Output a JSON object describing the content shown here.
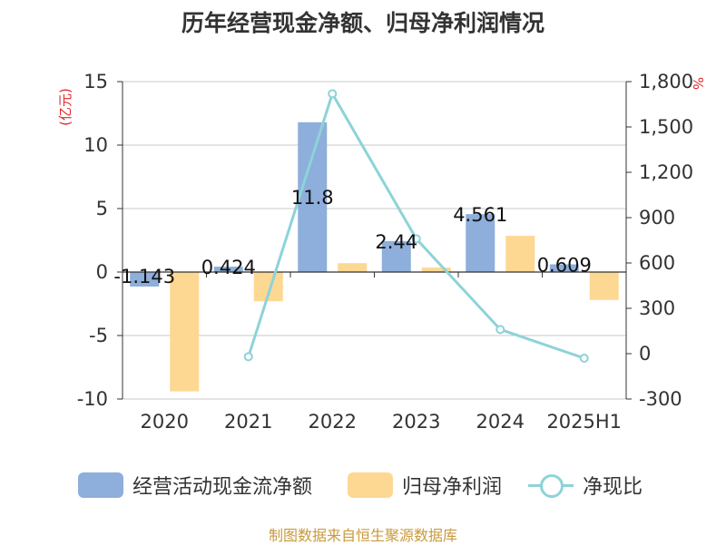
{
  "chart_data": {
    "type": "bar",
    "title": "历年经营现金净额、归母净利润情况",
    "categories": [
      "2020",
      "2021",
      "2022",
      "2023",
      "2024",
      "2025H1"
    ],
    "left_axis": {
      "unit": "(亿元)",
      "ylim": [
        -10,
        15
      ],
      "ticks": [
        "15",
        "10",
        "5",
        "0",
        "-5",
        "-10"
      ]
    },
    "right_axis": {
      "unit": "%",
      "ylim": [
        -300,
        1800
      ],
      "ticks": [
        "1,800",
        "1,500",
        "1,200",
        "900",
        "600",
        "300",
        "0",
        "-300"
      ]
    },
    "series": [
      {
        "name": "经营活动现金流净额",
        "type": "bar",
        "axis": "left",
        "color": "#8eaedb",
        "values": [
          -1.143,
          0.424,
          11.8,
          2.44,
          4.561,
          0.609
        ],
        "labels": [
          "-1.143",
          "0.424",
          "11.8",
          "2.44",
          "4.561",
          "0.609"
        ]
      },
      {
        "name": "归母净利润",
        "type": "bar",
        "axis": "left",
        "color": "#fdd893",
        "values": [
          -9.4,
          -2.3,
          0.7,
          0.35,
          2.85,
          -2.2
        ]
      },
      {
        "name": "净现比",
        "type": "line",
        "axis": "right",
        "color": "#8dd3d8",
        "values": [
          null,
          -20,
          1720,
          760,
          160,
          -30
        ]
      }
    ],
    "grid": true,
    "legend_position": "bottom"
  },
  "source": "制图数据来自恒生聚源数据库"
}
